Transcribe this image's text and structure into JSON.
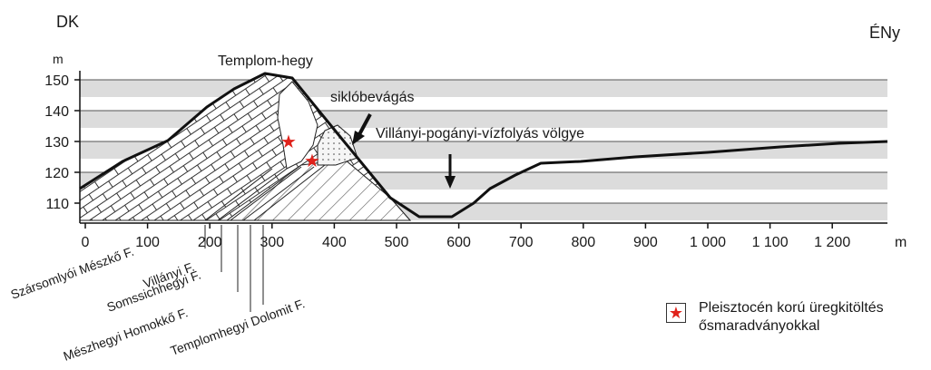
{
  "direction_left": "DK",
  "direction_right": "ÉNy",
  "y_axis": {
    "unit": "m",
    "ticks": [
      150,
      140,
      130,
      120,
      110
    ]
  },
  "x_axis": {
    "unit": "m",
    "ticks": [
      "0",
      "100",
      "200",
      "300",
      "400",
      "500",
      "600",
      "700",
      "800",
      "900",
      "1 000",
      "1 100",
      "1 200"
    ]
  },
  "labels": {
    "peak": "Templom-hegy",
    "cut": "siklóbevágás",
    "valley": "Villányi-pogányi-vízfolyás völgye"
  },
  "formations": [
    "Szársomlyói Mészkő F.",
    "Villányi F.",
    "Somssichhegyi F.",
    "Mészhegyi Homokkő F.",
    "Templomhegyi Dolomit F."
  ],
  "legend": {
    "text": "Pleisztocén korú üregkitöltés\nősmaradványokkal",
    "symbol_color": "#e0221b"
  },
  "colors": {
    "band": "#dcdcdc",
    "line": "#111111",
    "star": "#e0221b"
  }
}
